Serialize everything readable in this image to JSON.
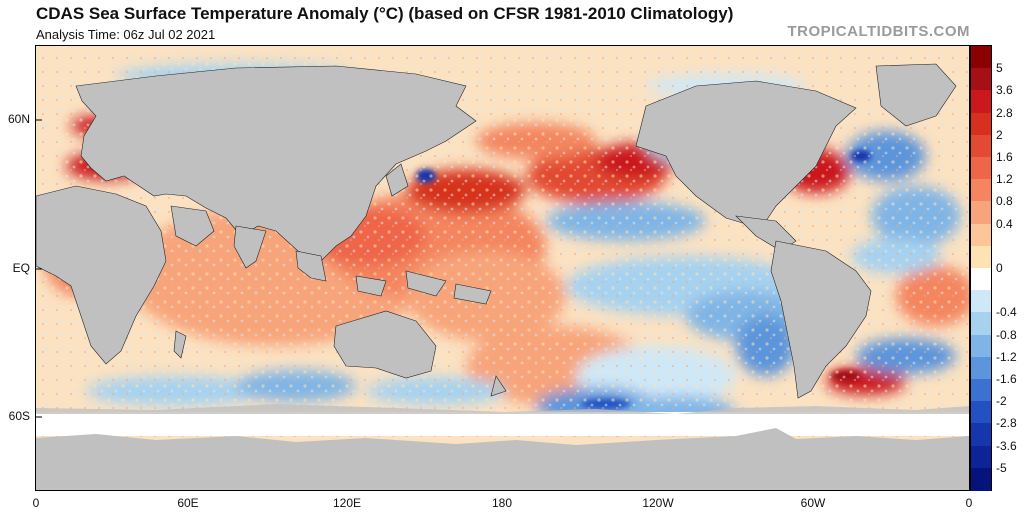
{
  "header": {
    "title": "CDAS Sea Surface Temperature Anomaly (°C) (based on CFSR 1981-2010 Climatology)",
    "analysis_time": "Analysis Time: 06z Jul 02 2021",
    "brand": "TROPICALTIDBITS.COM"
  },
  "map": {
    "latitude_labels": [
      "60N",
      "EQ",
      "60S"
    ],
    "longitude_labels": [
      "0",
      "60E",
      "120E",
      "180",
      "120W",
      "60W",
      "0"
    ],
    "land_color": "#c0c0c0",
    "sea_ice_color": "#ffffff"
  },
  "legend": {
    "units": "°C",
    "tick_labels": [
      "5",
      "3.6",
      "2.8",
      "2",
      "1.6",
      "1.2",
      "0.8",
      "0.4",
      "0",
      "-0.4",
      "-0.8",
      "-1.2",
      "-1.6",
      "-2",
      "-2.8",
      "-3.6",
      "-5"
    ],
    "colors": [
      "#8b0000",
      "#a50f15",
      "#cb181d",
      "#d7301f",
      "#e34a33",
      "#ef6548",
      "#f4855f",
      "#f8a47a",
      "#fcc698",
      "#fde3b3",
      "#ffffff",
      "#cfe8f7",
      "#a6d2f0",
      "#7fb5e6",
      "#5b95dc",
      "#3c72cf",
      "#2451c2",
      "#1536ad",
      "#0d2496",
      "#05137a"
    ]
  }
}
